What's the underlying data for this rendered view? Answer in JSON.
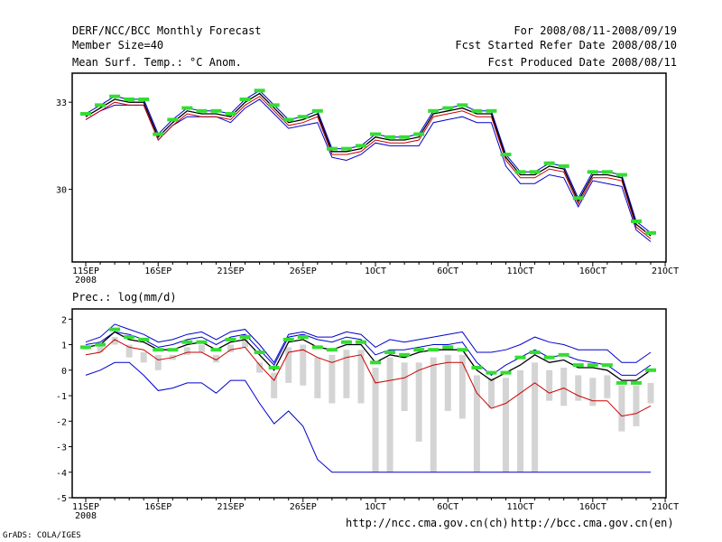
{
  "header": {
    "title": "DERF/NCC/BCC Monthly Forecast",
    "member_size": "Member Size=40",
    "variable": "Mean Surf. Temp.: °C Anom.",
    "period": "For 2008/08/11-2008/09/19",
    "started_date": "Fcst Started Refer Date 2008/08/10",
    "produced_date": "Fcst Produced Date 2008/08/11"
  },
  "footer": {
    "url_ncc": "http://ncc.cma.gov.cn(ch)",
    "url_bcc": "http://bcc.cma.gov.cn(en)",
    "credit": "GrADS: COLA/IGES"
  },
  "colors": {
    "ensemble_mean": "#000000",
    "upper_bound": "#0000cc",
    "lower_bound": "#cc0000",
    "marker": "#33dd33",
    "bar": "#d4d4d4"
  },
  "x_axis": {
    "tick_labels": [
      "11SEP",
      "16SEP",
      "21SEP",
      "26SEP",
      "1OCT",
      "6OCT",
      "11OCT",
      "16OCT",
      "21OCT"
    ],
    "year_label": "2008"
  },
  "chart_data": [
    {
      "type": "line",
      "title": "Mean Surf. Temp.: °C Anom.",
      "x": [
        1,
        2,
        3,
        4,
        5,
        6,
        7,
        8,
        9,
        10,
        11,
        12,
        13,
        14,
        15,
        16,
        17,
        18,
        19,
        20,
        21,
        22,
        23,
        24,
        25,
        26,
        27,
        28,
        29,
        30,
        31,
        32,
        33,
        34,
        35,
        36,
        37,
        38,
        39,
        40
      ],
      "ylim": [
        27.5,
        34.0
      ],
      "yticks": [
        30,
        33
      ],
      "series": [
        {
          "name": "mean",
          "values": [
            32.5,
            32.8,
            33.1,
            33.0,
            33.0,
            31.8,
            32.3,
            32.7,
            32.6,
            32.6,
            32.5,
            33.0,
            33.3,
            32.8,
            32.3,
            32.4,
            32.6,
            31.3,
            31.3,
            31.4,
            31.8,
            31.7,
            31.7,
            31.8,
            32.6,
            32.7,
            32.8,
            32.6,
            32.6,
            31.1,
            30.5,
            30.5,
            30.8,
            30.7,
            29.6,
            30.5,
            30.5,
            30.4,
            28.8,
            28.4
          ]
        },
        {
          "name": "upper",
          "values": [
            32.6,
            32.9,
            33.2,
            33.1,
            33.1,
            31.9,
            32.4,
            32.8,
            32.7,
            32.7,
            32.6,
            33.1,
            33.4,
            32.9,
            32.4,
            32.5,
            32.7,
            31.4,
            31.4,
            31.5,
            31.9,
            31.8,
            31.8,
            31.9,
            32.7,
            32.8,
            32.9,
            32.7,
            32.7,
            31.2,
            30.6,
            30.6,
            30.9,
            30.8,
            29.7,
            30.6,
            30.6,
            30.5,
            28.9,
            28.5
          ]
        },
        {
          "name": "lower",
          "values": [
            32.4,
            32.7,
            33.0,
            32.9,
            32.9,
            31.7,
            32.2,
            32.6,
            32.5,
            32.5,
            32.4,
            32.9,
            33.2,
            32.7,
            32.2,
            32.3,
            32.5,
            31.2,
            31.2,
            31.3,
            31.7,
            31.6,
            31.6,
            31.7,
            32.5,
            32.6,
            32.7,
            32.5,
            32.5,
            31.0,
            30.4,
            30.4,
            30.7,
            30.6,
            29.5,
            30.4,
            30.4,
            30.3,
            28.7,
            28.3
          ]
        },
        {
          "name": "min",
          "values": [
            32.4,
            32.7,
            32.9,
            32.9,
            32.9,
            31.7,
            32.2,
            32.5,
            32.5,
            32.5,
            32.3,
            32.8,
            33.1,
            32.6,
            32.1,
            32.2,
            32.3,
            31.1,
            31.0,
            31.2,
            31.6,
            31.5,
            31.5,
            31.5,
            32.3,
            32.4,
            32.5,
            32.3,
            32.3,
            30.8,
            30.2,
            30.2,
            30.5,
            30.4,
            29.4,
            30.3,
            30.2,
            30.1,
            28.6,
            28.2
          ]
        },
        {
          "name": "marker",
          "values": [
            32.6,
            32.9,
            33.2,
            33.1,
            33.1,
            31.9,
            32.4,
            32.8,
            32.7,
            32.7,
            32.6,
            33.1,
            33.4,
            32.9,
            32.4,
            32.5,
            32.7,
            31.4,
            31.4,
            31.5,
            31.9,
            31.8,
            31.8,
            31.9,
            32.7,
            32.8,
            32.9,
            32.7,
            32.7,
            31.2,
            30.6,
            30.6,
            30.9,
            30.8,
            29.7,
            30.6,
            30.6,
            30.5,
            28.9,
            28.5
          ]
        }
      ]
    },
    {
      "type": "line",
      "title": "Prec.: log(mm/d)",
      "x": [
        1,
        2,
        3,
        4,
        5,
        6,
        7,
        8,
        9,
        10,
        11,
        12,
        13,
        14,
        15,
        16,
        17,
        18,
        19,
        20,
        21,
        22,
        23,
        24,
        25,
        26,
        27,
        28,
        29,
        30,
        31,
        32,
        33,
        34,
        35,
        36,
        37,
        38,
        39,
        40
      ],
      "ylim": [
        -5,
        2.4
      ],
      "yticks": [
        -5,
        -4,
        -3,
        -2,
        -1,
        0,
        1,
        2
      ],
      "series": [
        {
          "name": "mean",
          "values": [
            0.9,
            1.0,
            1.5,
            1.2,
            1.1,
            0.8,
            0.8,
            1.0,
            1.1,
            0.8,
            1.1,
            1.2,
            0.6,
            0.0,
            1.1,
            1.2,
            0.9,
            0.8,
            1.0,
            1.0,
            0.3,
            0.6,
            0.5,
            0.7,
            0.8,
            0.8,
            0.8,
            0.0,
            -0.4,
            -0.1,
            0.2,
            0.6,
            0.3,
            0.4,
            0.1,
            0.1,
            0.0,
            -0.4,
            -0.4,
            0.0
          ]
        },
        {
          "name": "upper",
          "values": [
            1.0,
            1.1,
            1.5,
            1.4,
            1.2,
            0.9,
            1.0,
            1.2,
            1.3,
            1.0,
            1.3,
            1.4,
            0.8,
            0.2,
            1.3,
            1.4,
            1.2,
            1.1,
            1.3,
            1.2,
            0.6,
            0.8,
            0.8,
            0.9,
            1.0,
            1.0,
            1.1,
            0.3,
            -0.2,
            0.2,
            0.5,
            0.8,
            0.5,
            0.6,
            0.4,
            0.3,
            0.2,
            -0.2,
            -0.2,
            0.2
          ]
        },
        {
          "name": "lower",
          "values": [
            0.6,
            0.7,
            1.2,
            0.9,
            0.8,
            0.4,
            0.5,
            0.7,
            0.7,
            0.4,
            0.8,
            0.9,
            0.2,
            -0.4,
            0.7,
            0.8,
            0.5,
            0.3,
            0.5,
            0.6,
            -0.5,
            -0.4,
            -0.3,
            0.0,
            0.2,
            0.3,
            0.3,
            -0.9,
            -1.5,
            -1.3,
            -0.9,
            -0.5,
            -0.9,
            -0.7,
            -1.0,
            -1.2,
            -1.2,
            -1.8,
            -1.7,
            -1.4
          ]
        },
        {
          "name": "max",
          "values": [
            1.1,
            1.3,
            1.8,
            1.6,
            1.4,
            1.1,
            1.2,
            1.4,
            1.5,
            1.2,
            1.5,
            1.6,
            1.0,
            0.3,
            1.4,
            1.5,
            1.3,
            1.3,
            1.5,
            1.4,
            0.9,
            1.2,
            1.1,
            1.2,
            1.3,
            1.4,
            1.5,
            0.7,
            0.7,
            0.8,
            1.0,
            1.3,
            1.1,
            1.0,
            0.8,
            0.8,
            0.8,
            0.3,
            0.3,
            0.7
          ]
        },
        {
          "name": "min",
          "values": [
            -0.2,
            0.0,
            0.3,
            0.3,
            -0.2,
            -0.8,
            -0.7,
            -0.5,
            -0.5,
            -0.9,
            -0.4,
            -0.4,
            -1.3,
            -2.1,
            -1.6,
            -2.2,
            -3.5,
            -4.0,
            -4.0,
            -4.0,
            -4.0,
            -4.0,
            -4.0,
            -4.0,
            -4.0,
            -4.0,
            -4.0,
            -4.0,
            -4.0,
            -4.0,
            -4.0,
            -4.0,
            -4.0,
            -4.0,
            -4.0,
            -4.0,
            -4.0,
            -4.0,
            -4.0,
            -4.0
          ]
        },
        {
          "name": "marker",
          "values": [
            0.9,
            1.0,
            1.6,
            1.3,
            1.2,
            0.8,
            0.8,
            1.1,
            1.1,
            0.8,
            1.2,
            1.3,
            0.7,
            0.1,
            1.2,
            1.3,
            0.9,
            0.8,
            1.1,
            1.1,
            0.3,
            0.7,
            0.6,
            0.8,
            0.8,
            0.9,
            0.8,
            0.1,
            -0.1,
            -0.1,
            0.5,
            0.7,
            0.5,
            0.6,
            0.2,
            0.2,
            0.2,
            -0.5,
            -0.5,
            0.0
          ]
        },
        {
          "name": "bar_top",
          "values": [
            0.9,
            1.0,
            1.3,
            1.0,
            0.7,
            0.6,
            0.6,
            0.9,
            1.0,
            0.6,
            1.0,
            1.4,
            0.3,
            -0.1,
            0.9,
            1.0,
            0.5,
            0.6,
            0.8,
            0.8,
            0.1,
            0.5,
            0.3,
            0.3,
            0.5,
            0.6,
            0.6,
            -0.2,
            -0.3,
            -0.3,
            0.0,
            0.3,
            0.0,
            0.1,
            -0.2,
            -0.3,
            -0.2,
            -0.6,
            -0.6,
            -0.5
          ]
        },
        {
          "name": "bar_bottom",
          "values": [
            0.8,
            0.7,
            1.0,
            0.5,
            0.3,
            0.0,
            0.4,
            0.6,
            0.7,
            0.3,
            0.7,
            0.9,
            -0.1,
            -1.1,
            -0.5,
            -0.6,
            -1.1,
            -1.3,
            -1.1,
            -1.3,
            -4.0,
            -4.0,
            -1.6,
            -2.8,
            -4.0,
            -1.6,
            -1.9,
            -4.0,
            -1.5,
            -4.0,
            -4.0,
            -4.0,
            -1.2,
            -1.4,
            -1.2,
            -1.4,
            -1.1,
            -2.4,
            -2.2,
            -1.3
          ]
        }
      ]
    }
  ]
}
